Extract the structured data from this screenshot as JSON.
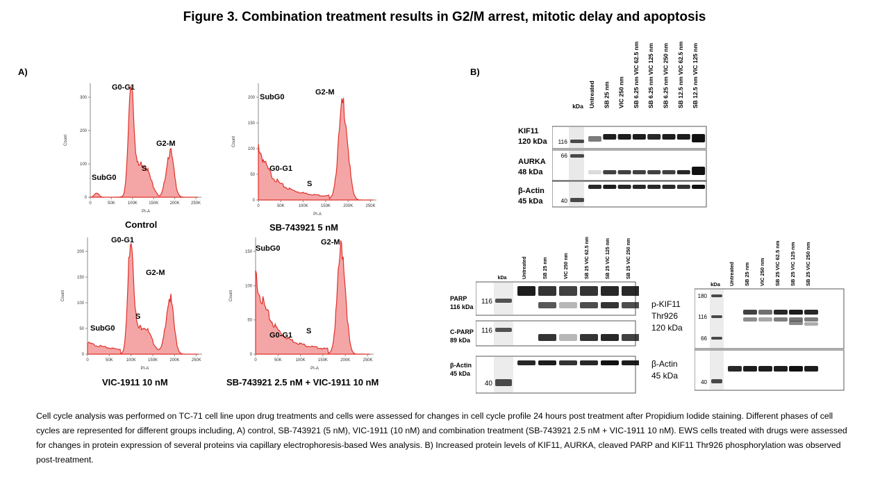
{
  "title": "Figure 3. Combination treatment results in G2/M arrest, mitotic delay and apoptosis",
  "panel_a_label": "A)",
  "panel_b_label": "B)",
  "histograms": [
    {
      "id": "h1",
      "caption": "Control",
      "ylabel": "Count",
      "xlabel": "PI-A",
      "yticks": [
        "0",
        "100",
        "200",
        "300"
      ],
      "xticks": [
        "0",
        "50K",
        "100K",
        "150K",
        "200K",
        "250K"
      ],
      "labels": {
        "g0g1": "G0-G1",
        "s": "S",
        "g2m": "G2-M",
        "subg0": "SubG0"
      }
    },
    {
      "id": "h2",
      "caption": "SB-743921 5 nM",
      "ylabel": "Count",
      "xlabel": "PI-A",
      "yticks": [
        "0",
        "50",
        "100",
        "150",
        "200"
      ],
      "xticks": [
        "0",
        "50K",
        "100K",
        "150K",
        "200K",
        "250K"
      ],
      "labels": {
        "g0g1": "G0-G1",
        "s": "S",
        "g2m": "G2-M",
        "subg0": "SubG0"
      }
    },
    {
      "id": "h3",
      "caption": "VIC-1911  10 nM",
      "ylabel": "Count",
      "xlabel": "PI-A",
      "yticks": [
        "0",
        "50",
        "100",
        "150",
        "200"
      ],
      "xticks": [
        "0",
        "50K",
        "100K",
        "150K",
        "200K",
        "250K"
      ],
      "labels": {
        "g0g1": "G0-G1",
        "s": "S",
        "g2m": "G2-M",
        "subg0": "SubG0"
      }
    },
    {
      "id": "h4",
      "caption": "SB-743921 2.5 nM + VIC-1911  10 nM",
      "ylabel": "Count",
      "xlabel": "PI-A",
      "yticks": [
        "0",
        "50",
        "100",
        "150"
      ],
      "xticks": [
        "0",
        "50K",
        "100K",
        "150K",
        "200K",
        "250K"
      ],
      "labels": {
        "g0g1": "G0-G1",
        "s": "S",
        "g2m": "G2-M",
        "subg0": "SubG0"
      }
    }
  ],
  "blot1": {
    "kda_header": "kDa",
    "lanes": [
      "Untreated",
      "SB 25 nm",
      "VIC 250 nm",
      "SB 6.25 nm VIC 62.5 nm",
      "SB 6.25 nm VIC 125 nm",
      "SB 6.25 nm VIC 250 nm",
      "SB 12.5 nm VIC 62.5 nm",
      "SB 12.5 nm VIC 125 nm"
    ],
    "rows": [
      {
        "label1": "KIF11",
        "label2": "120 kDa",
        "marker": "116"
      },
      {
        "label1": "AURKA",
        "label2": "48 kDa",
        "marker": "66"
      },
      {
        "label1": "β-Actin",
        "label2": "45 kDa",
        "marker": "40"
      }
    ]
  },
  "blot2": {
    "kda_header": "kDa",
    "lanes": [
      "Untreated",
      "SB 25 nm",
      "VIC 250 nm",
      "SB 25 VIC 62.5 nm",
      "SB 25 VIC 125 nm",
      "SB 25 VIC 250 nm"
    ],
    "rows": [
      {
        "label1": "PARP",
        "label2": "116 kDa",
        "marker": "116"
      },
      {
        "label1": "C-PARP",
        "label2": "89 kDa",
        "marker": "116"
      },
      {
        "label1": "β-Actin",
        "label2": "45 kDa",
        "marker": "40"
      }
    ]
  },
  "blot3": {
    "kda_header": "kDa",
    "lanes": [
      "Untreated",
      "SB 25 nm",
      "VIC 250 nm",
      "SB 25 VIC 62.5 nm",
      "SB 25 VIC 125 nm",
      "SB 25 VIC 250 nm"
    ],
    "rows": [
      {
        "label1": "p-KIF11",
        "label2": "Thr926",
        "label3": "120 kDa",
        "markers": [
          "180",
          "116",
          "66"
        ]
      },
      {
        "label1": "β-Actin",
        "label2": "45 kDa",
        "marker": "40"
      }
    ]
  },
  "caption": "Cell cycle analysis was performed on TC-71 cell line upon  drug treatments and cells were assessed for changes in cell cycle profile 24 hours  post treatment after Propidium  Iodide staining. Different phases of cell cycles are represented for different groups including, A) control, SB-743921 (5 nM), VIC-1911 (10 nM) and combination treatment  (SB-743921 2.5 nM + VIC-1911 10 nM). EWS cells treated with drugs were assessed for changes in protein expression of several proteins via capillary electrophoresis-based Wes analysis. B) Increased protein levels of KIF11, AURKA, cleaved PARP and KIF11 Thr926 phosphorylation  was observed post-treatment.",
  "colors": {
    "histogram_fill": "#f4a6a6",
    "histogram_line": "#e0302a",
    "band": "#111111"
  }
}
